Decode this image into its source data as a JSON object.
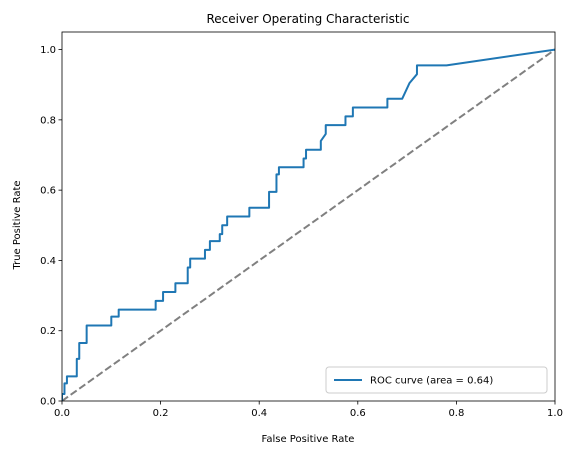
{
  "chart_data": {
    "type": "line",
    "title": "Receiver Operating Characteristic",
    "xlabel": "False Positive Rate",
    "ylabel": "True Positive Rate",
    "xlim": [
      0.0,
      1.0
    ],
    "ylim": [
      0.0,
      1.05
    ],
    "x_ticks": [
      "0.0",
      "0.2",
      "0.4",
      "0.6",
      "0.8",
      "1.0"
    ],
    "y_ticks": [
      "0.0",
      "0.2",
      "0.4",
      "0.6",
      "0.8",
      "1.0"
    ],
    "grid": false,
    "legend_position": "lower-right",
    "series": [
      {
        "name": "ROC curve (area = 0.64)",
        "color": "#1f77b4",
        "style": "solid",
        "points": [
          [
            0.0,
            0.0
          ],
          [
            0.0,
            0.02
          ],
          [
            0.005,
            0.02
          ],
          [
            0.005,
            0.05
          ],
          [
            0.01,
            0.05
          ],
          [
            0.01,
            0.07
          ],
          [
            0.03,
            0.07
          ],
          [
            0.03,
            0.12
          ],
          [
            0.035,
            0.12
          ],
          [
            0.035,
            0.165
          ],
          [
            0.05,
            0.165
          ],
          [
            0.05,
            0.215
          ],
          [
            0.1,
            0.215
          ],
          [
            0.1,
            0.24
          ],
          [
            0.115,
            0.24
          ],
          [
            0.115,
            0.26
          ],
          [
            0.19,
            0.26
          ],
          [
            0.19,
            0.285
          ],
          [
            0.205,
            0.285
          ],
          [
            0.205,
            0.31
          ],
          [
            0.23,
            0.31
          ],
          [
            0.23,
            0.335
          ],
          [
            0.255,
            0.335
          ],
          [
            0.255,
            0.38
          ],
          [
            0.26,
            0.38
          ],
          [
            0.26,
            0.405
          ],
          [
            0.29,
            0.405
          ],
          [
            0.29,
            0.43
          ],
          [
            0.3,
            0.43
          ],
          [
            0.3,
            0.455
          ],
          [
            0.32,
            0.455
          ],
          [
            0.32,
            0.475
          ],
          [
            0.325,
            0.475
          ],
          [
            0.325,
            0.5
          ],
          [
            0.335,
            0.5
          ],
          [
            0.335,
            0.525
          ],
          [
            0.38,
            0.525
          ],
          [
            0.38,
            0.55
          ],
          [
            0.42,
            0.55
          ],
          [
            0.42,
            0.595
          ],
          [
            0.435,
            0.595
          ],
          [
            0.435,
            0.645
          ],
          [
            0.44,
            0.645
          ],
          [
            0.44,
            0.665
          ],
          [
            0.49,
            0.665
          ],
          [
            0.49,
            0.69
          ],
          [
            0.495,
            0.69
          ],
          [
            0.495,
            0.715
          ],
          [
            0.525,
            0.715
          ],
          [
            0.525,
            0.74
          ],
          [
            0.535,
            0.76
          ],
          [
            0.535,
            0.785
          ],
          [
            0.575,
            0.785
          ],
          [
            0.575,
            0.81
          ],
          [
            0.59,
            0.81
          ],
          [
            0.59,
            0.835
          ],
          [
            0.66,
            0.835
          ],
          [
            0.66,
            0.86
          ],
          [
            0.69,
            0.86
          ],
          [
            0.705,
            0.905
          ],
          [
            0.72,
            0.93
          ],
          [
            0.72,
            0.955
          ],
          [
            0.78,
            0.955
          ],
          [
            1.0,
            1.0
          ]
        ]
      },
      {
        "name": "",
        "color": "#808080",
        "style": "dashed",
        "points": [
          [
            0.0,
            0.0
          ],
          [
            1.0,
            1.0
          ]
        ]
      }
    ]
  }
}
